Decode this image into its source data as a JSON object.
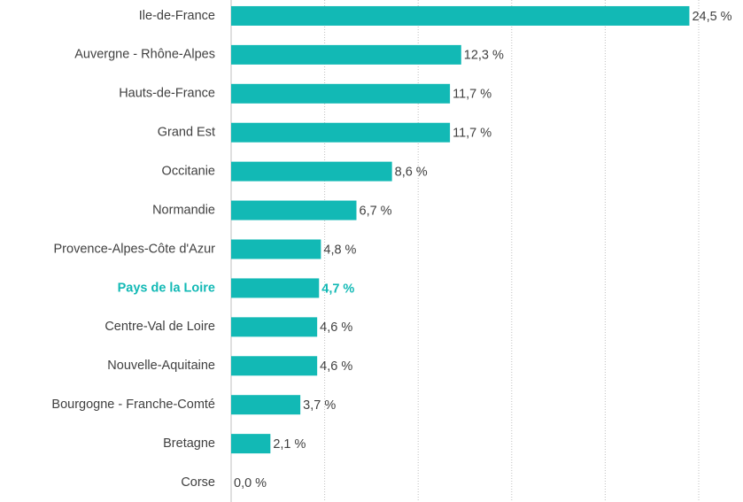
{
  "chart_data": {
    "type": "bar",
    "orientation": "horizontal",
    "categories": [
      "Ile-de-France",
      "Auvergne - Rhône-Alpes",
      "Hauts-de-France",
      "Grand Est",
      "Occitanie",
      "Normandie",
      "Provence-Alpes-Côte d'Azur",
      "Pays de la Loire",
      "Centre-Val de Loire",
      "Nouvelle-Aquitaine",
      "Bourgogne - Franche-Comté",
      "Bretagne",
      "Corse"
    ],
    "values": [
      24.5,
      12.3,
      11.7,
      11.7,
      8.6,
      6.7,
      4.8,
      4.7,
      4.6,
      4.6,
      3.7,
      2.1,
      0.0
    ],
    "value_labels": [
      "24,5 %",
      "12,3 %",
      "11,7 %",
      "11,7 %",
      "8,6 %",
      "6,7 %",
      "4,8 %",
      "4,7 %",
      "4,6 %",
      "4,6 %",
      "3,7 %",
      "2,1 %",
      "0,0 %"
    ],
    "color": "#12b9b5",
    "highlight": {
      "index": 7,
      "color": "#12b9b5"
    },
    "xlim": [
      0,
      25
    ],
    "xticks": [
      0,
      5,
      10,
      15,
      20,
      25
    ],
    "grid": true
  }
}
